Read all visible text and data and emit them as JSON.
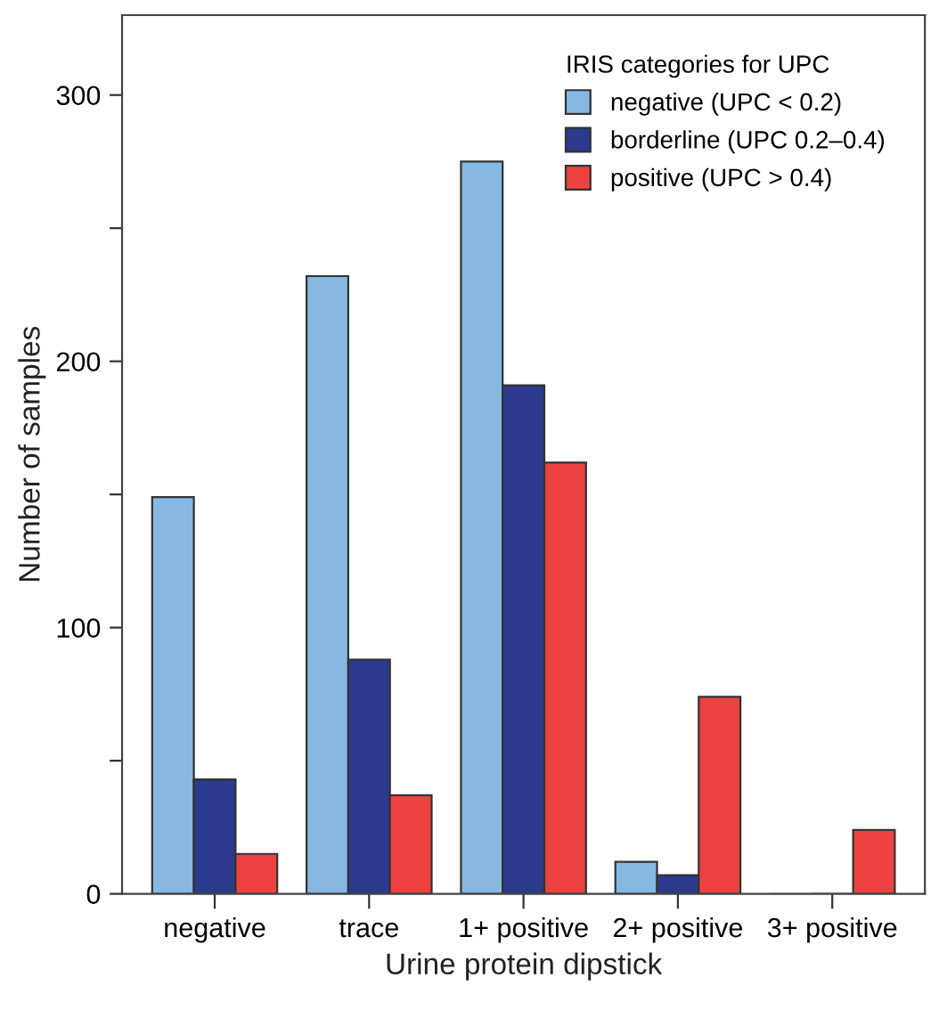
{
  "chart_data": {
    "type": "bar",
    "xlabel": "Urine protein dipstick",
    "ylabel": "Number of samples",
    "legend_title": "IRIS categories for UPC",
    "categories": [
      "negative",
      "trace",
      "1+ positive",
      "2+ positive",
      "3+ positive"
    ],
    "series": [
      {
        "name": "negative (UPC < 0.2)",
        "color": "#86b8e2",
        "values": [
          149,
          232,
          275,
          12,
          0
        ]
      },
      {
        "name": "borderline (UPC 0.2–0.4)",
        "color": "#2b3a8c",
        "values": [
          43,
          88,
          191,
          7,
          0
        ]
      },
      {
        "name": "positive (UPC > 0.4)",
        "color": "#ec4340",
        "values": [
          15,
          37,
          162,
          74,
          24
        ]
      }
    ],
    "ylim": [
      0,
      330
    ],
    "yticks": [
      0,
      {
        "value": 50,
        "label": null
      },
      100,
      {
        "value": 150,
        "label": null
      },
      200,
      {
        "value": 250,
        "label": null
      },
      300
    ],
    "grid": false,
    "legend": "top right"
  }
}
